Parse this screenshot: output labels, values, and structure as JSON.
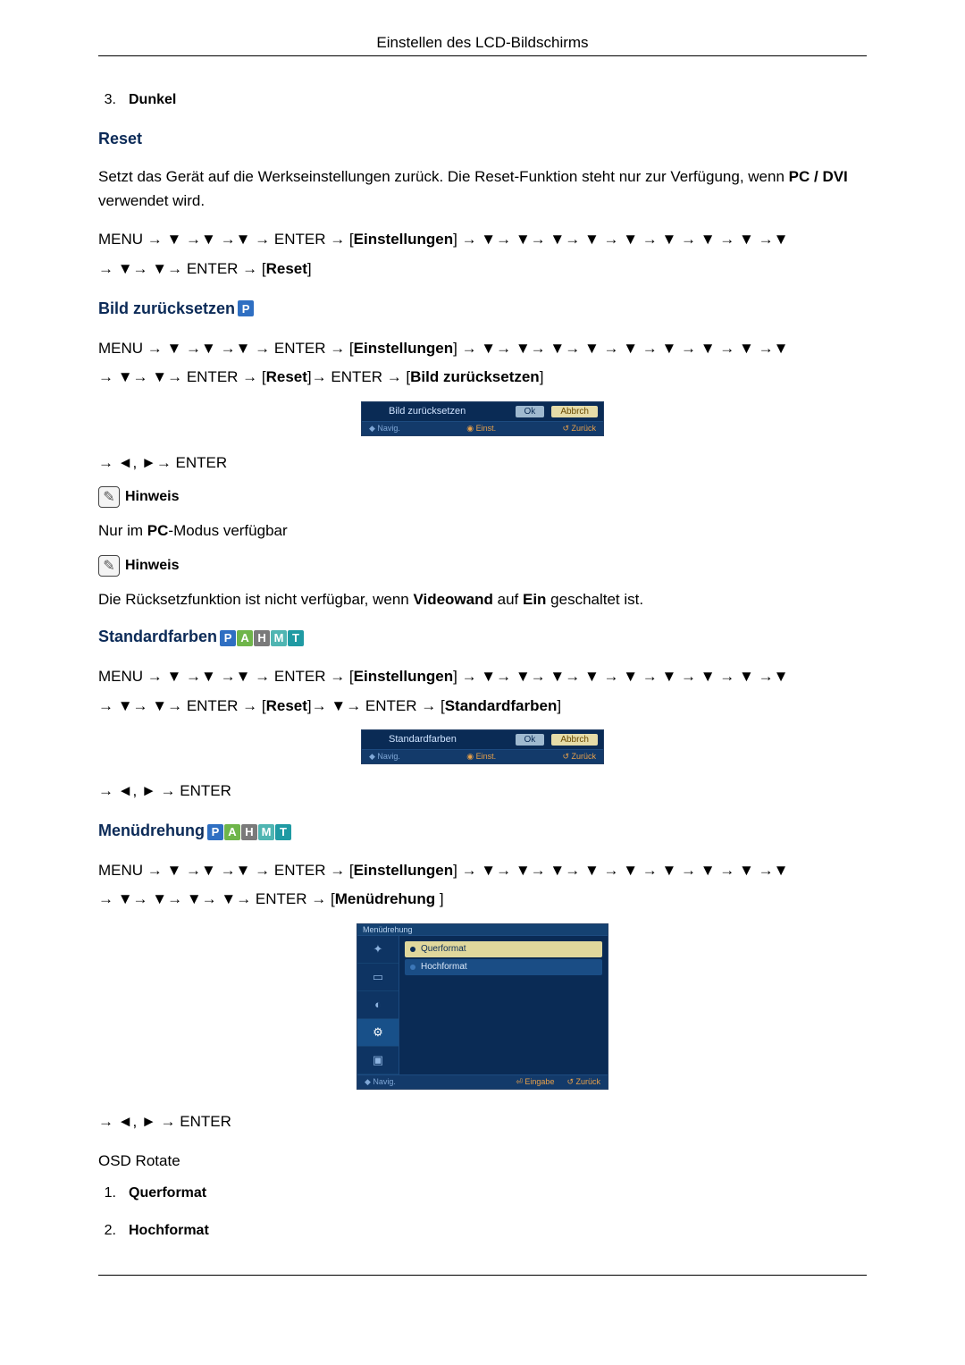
{
  "header": {
    "title": "Einstellen des LCD-Bildschirms"
  },
  "intro_item": {
    "num": "3.",
    "label": "Dunkel"
  },
  "glyphs": {
    "arrow": "→",
    "down": "▼",
    "left": "◄",
    "right": "►",
    "menu": "MENU",
    "enter": "ENTER",
    "preset_open": "[",
    "preset_close": "]"
  },
  "reset": {
    "heading": "Reset",
    "text_a": "Setzt das Gerät auf die Werkseinstellungen zurück. Die Reset-Funktion steht nur zur Verfügung, wenn ",
    "text_b_bold": "PC / DVI",
    "text_c": " verwendet wird.",
    "nav1_preset": "Einstellungen",
    "nav2_preset": "Reset"
  },
  "bild": {
    "heading": "Bild zurücksetzen",
    "badges": [
      {
        "label": "P",
        "bg": "#2f6fc2"
      }
    ],
    "nav1_preset": "Einstellungen",
    "nav2_preset": "Reset",
    "nav3_preset": "Bild zurücksetzen",
    "osd": {
      "title": "Bild zurücksetzen",
      "ok": "Ok",
      "cancel": "Abbrch",
      "hint_nav": "◆ Navig.",
      "hint_set": "◉ Einst.",
      "hint_back": "↺ Zurück"
    },
    "post_enter": "→ ◄, ►→ ENTER",
    "hinweis1_label": "Hinweis",
    "hinweis1_text_a": "Nur im ",
    "hinweis1_text_b_bold": "PC",
    "hinweis1_text_c": "-Modus verfügbar",
    "hinweis2_label": "Hinweis",
    "hinweis2_text_a": "Die Rücksetzfunktion ist nicht verfügbar, wenn ",
    "hinweis2_text_b_bold": "Videowand",
    "hinweis2_text_c": " auf ",
    "hinweis2_text_d_bold": "Ein",
    "hinweis2_text_e": " geschaltet ist."
  },
  "standard": {
    "heading": "Standardfarben",
    "badges": [
      {
        "label": "P",
        "bg": "#2f6fc2"
      },
      {
        "label": "A",
        "bg": "#6fb54a"
      },
      {
        "label": "H",
        "bg": "#7a7a7a"
      },
      {
        "label": "M",
        "bg": "#4fb5b2"
      },
      {
        "label": "T",
        "bg": "#1f9aa3"
      }
    ],
    "nav1_preset": "Einstellungen",
    "nav2_preset": "Reset",
    "nav3_preset": "Standardfarben",
    "osd": {
      "title": "Standardfarben",
      "ok": "Ok",
      "cancel": "Abbrch",
      "hint_nav": "◆ Navig.",
      "hint_set": "◉ Einst.",
      "hint_back": "↺ Zurück"
    },
    "post_enter": "→ ◄, ► → ENTER"
  },
  "menudreh": {
    "heading": "Menüdrehung",
    "badges": [
      {
        "label": "P",
        "bg": "#2f6fc2"
      },
      {
        "label": "A",
        "bg": "#6fb54a"
      },
      {
        "label": "H",
        "bg": "#7a7a7a"
      },
      {
        "label": "M",
        "bg": "#4fb5b2"
      },
      {
        "label": "T",
        "bg": "#1f9aa3"
      }
    ],
    "nav1_preset": "Einstellungen",
    "nav2_preset": "Menüdrehung ",
    "osd": {
      "tab": "Menüdrehung",
      "side_icons": [
        "✦",
        "▭",
        "◐",
        "⚙",
        "▣"
      ],
      "side_sel_index": 3,
      "opt1": "Querformat",
      "opt2": "Hochformat",
      "hint_nav": "◆ Navig.",
      "hint_set": "⏎ Eingabe",
      "hint_back": "↺ Zurück"
    },
    "post_enter": "→ ◄, ► → ENTER",
    "osd_rotate_label": "OSD Rotate",
    "items": [
      {
        "num": "1.",
        "label": "Querformat"
      },
      {
        "num": "2.",
        "label": "Hochformat"
      }
    ]
  }
}
